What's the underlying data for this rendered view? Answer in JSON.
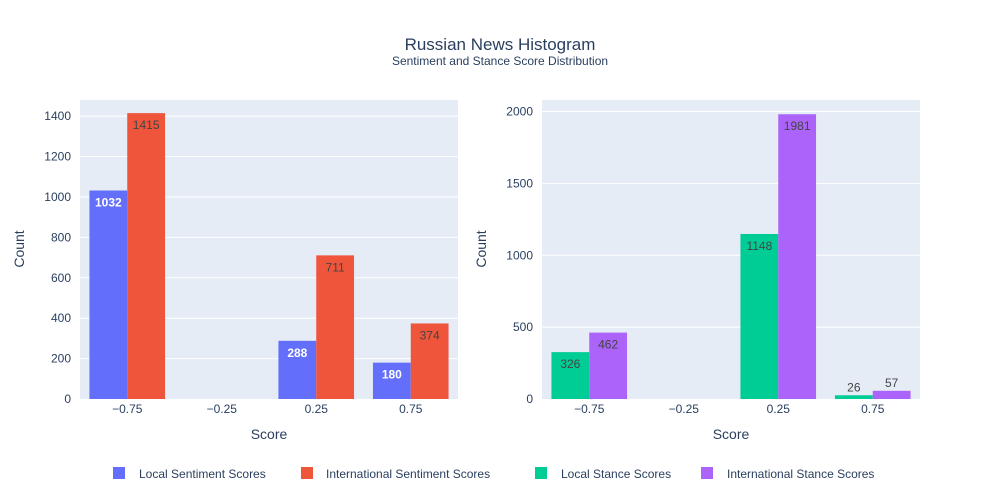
{
  "title": "Russian News Histogram",
  "subtitle": "Sentiment and Stance Score Distribution",
  "chart_data": [
    {
      "type": "bar",
      "categories": [
        "−0.75",
        "−0.25",
        "0.25",
        "0.75"
      ],
      "xlabel": "Score",
      "ylabel": "Count",
      "ylim": [
        0,
        1480
      ],
      "yticks": [
        0,
        200,
        400,
        600,
        800,
        1000,
        1200,
        1400
      ],
      "series": [
        {
          "name": "Local Sentiment Scores",
          "color": "#636efa",
          "values": [
            1032,
            0,
            288,
            180
          ],
          "labels": [
            "1032",
            "",
            "288",
            "180"
          ],
          "label_color": "#ffffff",
          "label_bold": true
        },
        {
          "name": "International Sentiment Scores",
          "color": "#ef553b",
          "values": [
            1415,
            0,
            711,
            374
          ],
          "labels": [
            "1415",
            "",
            "711",
            "374"
          ],
          "label_color": "#444444",
          "label_bold": false
        }
      ]
    },
    {
      "type": "bar",
      "categories": [
        "−0.75",
        "−0.25",
        "0.25",
        "0.75"
      ],
      "xlabel": "Score",
      "ylabel": "Count",
      "ylim": [
        0,
        2080
      ],
      "yticks": [
        0,
        500,
        1000,
        1500,
        2000
      ],
      "series": [
        {
          "name": "Local Stance Scores",
          "color": "#00cc96",
          "values": [
            326,
            0,
            1148,
            26
          ],
          "labels": [
            "326",
            "",
            "1148",
            "26"
          ],
          "label_color": "#444444",
          "label_bold": false
        },
        {
          "name": "International Stance Scores",
          "color": "#ab63fa",
          "values": [
            462,
            0,
            1981,
            57
          ],
          "labels": [
            "462",
            "",
            "1981",
            "57"
          ],
          "label_color": "#444444",
          "label_bold": false
        }
      ]
    }
  ],
  "legend": {
    "placement": "bottom",
    "items": [
      {
        "label": "Local Sentiment Scores",
        "color": "#636efa"
      },
      {
        "label": "International Sentiment Scores",
        "color": "#ef553b"
      },
      {
        "label": "Local Stance Scores",
        "color": "#00cc96"
      },
      {
        "label": "International Stance Scores",
        "color": "#ab63fa"
      }
    ]
  }
}
